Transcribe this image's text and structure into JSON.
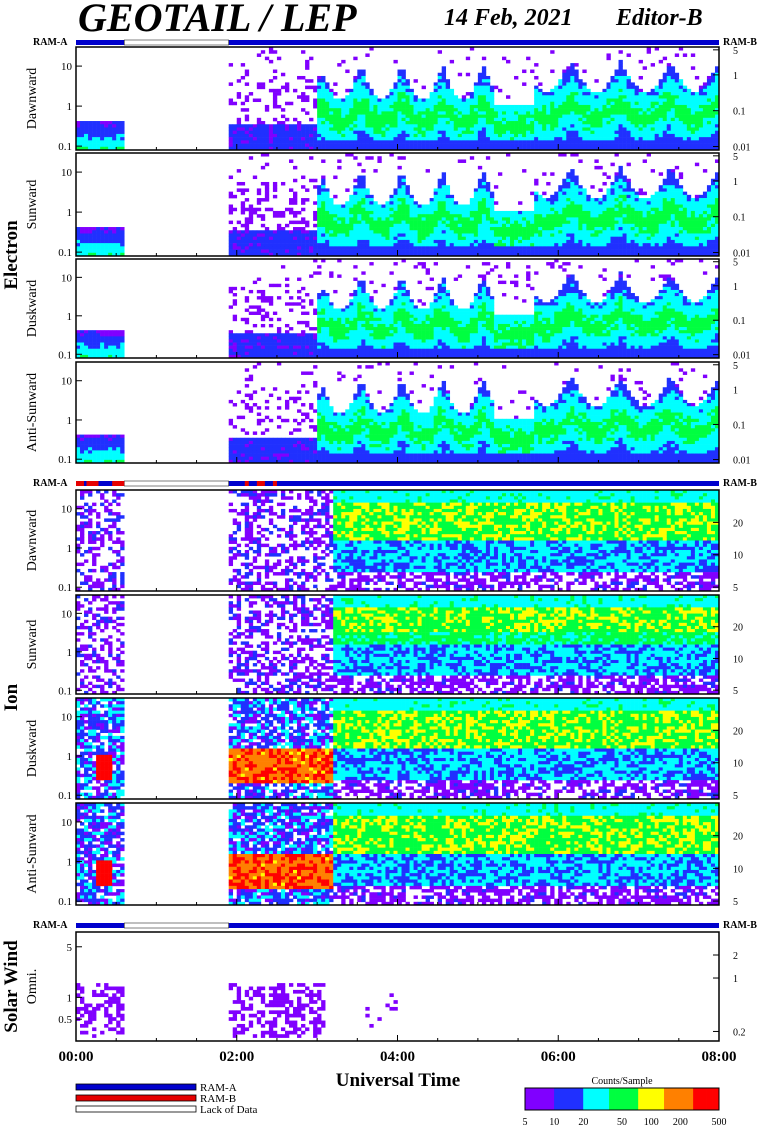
{
  "header": {
    "title": "GEOTAIL / LEP",
    "date": "14 Feb, 2021",
    "editor": "Editor-B"
  },
  "ram_labels": {
    "left": "RAM-A",
    "right": "RAM-B"
  },
  "groups": [
    {
      "label": "Electron",
      "panels": [
        "Dawnward",
        "Sunward",
        "Duskward",
        "Anti-Sunward"
      ]
    },
    {
      "label": "Ion",
      "panels": [
        "Dawnward",
        "Sunward",
        "Duskward",
        "Anti-Sunward"
      ]
    },
    {
      "label": "Solar Wind",
      "panels": [
        "Omni."
      ]
    }
  ],
  "axes": {
    "electron_left_ticks": [
      "10",
      "1",
      "0.1"
    ],
    "electron_right_ticks": [
      "5",
      "1",
      "0.1",
      "0.01"
    ],
    "ion_left_ticks": [
      "10",
      "1",
      "0.1"
    ],
    "ion_right_ticks": [
      "20",
      "10",
      "5"
    ],
    "sw_left_ticks": [
      "5",
      "1",
      "0.5"
    ],
    "sw_right_ticks": [
      "2",
      "1",
      "0.2"
    ],
    "x_ticks": [
      "00:00",
      "02:00",
      "04:00",
      "06:00",
      "08:00"
    ],
    "x_label": "Universal Time"
  },
  "legend": {
    "items": [
      {
        "label": "RAM-A",
        "color": "#0000cc"
      },
      {
        "label": "RAM-B",
        "color": "#e60000"
      },
      {
        "label": "Lack of Data",
        "color": "#ffffff"
      }
    ]
  },
  "colorbar": {
    "title": "Counts/Sample",
    "ticks": [
      "5",
      "10",
      "20",
      "50",
      "100",
      "200",
      "500"
    ],
    "colors": [
      "#8000ff",
      "#2030ff",
      "#00ffff",
      "#00ff40",
      "#ffff00",
      "#ff8000",
      "#ff0000"
    ]
  },
  "chart_data": {
    "type": "heatmap",
    "title": "GEOTAIL / LEP",
    "x_range_hours": [
      0,
      8
    ],
    "xlabel": "Universal Time",
    "data_gaps_hours": [
      [
        0.6,
        1.9
      ]
    ],
    "ram_a_intervals_hours": [
      [
        0,
        0.6
      ],
      [
        1.9,
        8.0
      ]
    ],
    "colorbar_range_counts_per_sample": [
      5,
      500
    ],
    "colorbar_scale": "log",
    "panels": [
      {
        "group": "Electron",
        "direction": "Dawnward",
        "y_range_keV": [
          0.08,
          30
        ],
        "y_scale": "log"
      },
      {
        "group": "Electron",
        "direction": "Sunward",
        "y_range_keV": [
          0.08,
          30
        ],
        "y_scale": "log"
      },
      {
        "group": "Electron",
        "direction": "Duskward",
        "y_range_keV": [
          0.08,
          30
        ],
        "y_scale": "log"
      },
      {
        "group": "Electron",
        "direction": "Anti-Sunward",
        "y_range_keV": [
          0.08,
          30
        ],
        "y_scale": "log"
      },
      {
        "group": "Ion",
        "direction": "Dawnward",
        "y_range_keV": [
          0.08,
          30
        ],
        "y_scale": "log"
      },
      {
        "group": "Ion",
        "direction": "Sunward",
        "y_range_keV": [
          0.08,
          30
        ],
        "y_scale": "log"
      },
      {
        "group": "Ion",
        "direction": "Duskward",
        "y_range_keV": [
          0.08,
          30
        ],
        "y_scale": "log"
      },
      {
        "group": "Ion",
        "direction": "Anti-Sunward",
        "y_range_keV": [
          0.08,
          30
        ],
        "y_scale": "log"
      },
      {
        "group": "Solar Wind",
        "direction": "Omni.",
        "y_range_keV": [
          0.25,
          8
        ],
        "y_scale": "log"
      }
    ]
  }
}
